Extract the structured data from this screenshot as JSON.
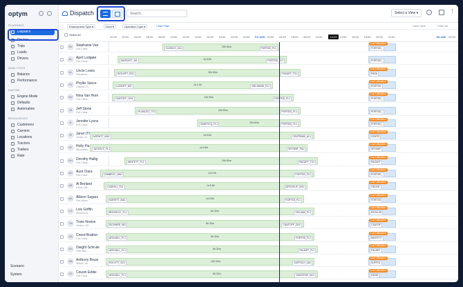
{
  "app": {
    "logo": "optym",
    "title": "Dispatch"
  },
  "sidebar": {
    "sections": [
      {
        "label": "PLANNING",
        "items": [
          "Dispatch",
          "Review",
          "Trips",
          "Loads",
          "Drivers"
        ]
      },
      {
        "label": "ANALYTICS",
        "items": [
          "Balance",
          "Performance"
        ]
      },
      {
        "label": "ENGINE",
        "items": [
          "Engine Mode",
          "Defaults",
          "Automation"
        ]
      },
      {
        "label": "RESOURCES",
        "items": [
          "Customers",
          "Carriers",
          "Locations",
          "Tractors",
          "Trailers",
          "Rate"
        ]
      }
    ],
    "footer": [
      "Scenario",
      "System"
    ]
  },
  "header": {
    "search_placeholder": "Search...",
    "select_view": "Select a View"
  },
  "filters": {
    "items": [
      "Employment Type",
      "Fleet",
      "Operation Type"
    ],
    "add": "+ Add Filter",
    "save": "Save View",
    "clear": "Clear All"
  },
  "timeline": {
    "ticks": [
      "22:00",
      "02:00",
      "04:00",
      "06:00",
      "08:00",
      "10:00",
      "12:00",
      "14:00",
      "16:00",
      "18:00",
      "20:00",
      "22:00",
      "Fri 4/25",
      "02:00",
      "04:00",
      "06:00",
      "08:00",
      "10:00",
      "12:00",
      "14:00",
      "16:00",
      "18:00",
      "20:00",
      "22:00",
      "",
      "",
      "",
      "Sa 4/26",
      "02:00",
      "04:00"
    ],
    "now": "14:23",
    "select_all": "Select All"
  },
  "drivers": [
    {
      "initials": "SV",
      "name": "Stephanie Van",
      "loc": "Fort Chest...",
      "a": "GLENCO_VA1",
      "b": "PORTDD_FL1",
      "d": "20h 50m",
      "c": "PORTDD_"
    },
    {
      "initials": "AL",
      "name": "April Lodgate",
      "loc": "Fort Chest...",
      "a": "MUSCATT_IA1",
      "b": "PORTDD_FL1",
      "d": "1d 5.8h",
      "c": "PORTDD_"
    },
    {
      "initials": "UL",
      "name": "Uncle Lewis",
      "loc": "Pasadena,...",
      "a": "SIOUXFT_SD1",
      "b": "PASAFF_TX1",
      "d": "20h 50m",
      "c": "PASA"
    },
    {
      "initials": "PV",
      "name": "Phyllis Vance",
      "loc": "Orlando, FL",
      "a": "LUDINFF_MI1",
      "b": "ORLANNW_FL1",
      "d": "1d 1.0h",
      "c": "PORTHS"
    },
    {
      "initials": "NV",
      "name": "Nina Van Hom",
      "loc": "Fort Chest...",
      "a": "CANTOFF_OH1",
      "b": "PORTDD_FL1",
      "d": "13h 30m",
      "c": "PORTDD_"
    },
    {
      "initials": "JS",
      "name": "Jeff Stone",
      "loc": "Fort Chest...",
      "a": "PLANOCC_TX1",
      "b": "PORTDD_FL1",
      "d": "20h 50m",
      "c": "PORTDD_"
    },
    {
      "initials": "JL",
      "name": "Jennifer Lyons",
      "loc": "Fort Chest...",
      "a": "SANFOCQ_FL1",
      "b": "PORTDD_FL1",
      "d": "20h 50m",
      "c": "PORTDD_"
    },
    {
      "initials": "JP",
      "name": "Janet (The Go",
      "loc": "Centra, AL",
      "a": "NORHTT_MA1",
      "b": "CENTRWW_AL1",
      "d": "1d 5.8h",
      "c": "CENTR"
    },
    {
      "initials": "HF",
      "name": "Holly Flax",
      "loc": "Wyomissin...",
      "a": "JACKSCC_FL1",
      "b": "WYOMIF_PA1",
      "d": "1d 5.8h",
      "c": "WYOMIF"
    },
    {
      "initials": "DH",
      "name": "Dorothy Hallig",
      "loc": "Fort Chest...",
      "a": "WINTETT_FL1",
      "b": "PAGAFF_TX1",
      "d": "20h 50m",
      "c": "PAGAFF"
    },
    {
      "initials": "AC",
      "name": "Aunt Clara",
      "loc": "Fort Chest...",
      "a": "CAMBRCC_MN1",
      "b": "PORTDD_FL1",
      "d": "1d 6.9h",
      "c": "PORTDD_"
    },
    {
      "initials": "AB",
      "name": "Al Borland",
      "loc": "Grove City...",
      "a": "CASEELL_FL1",
      "b": "GROVEUF_OH1",
      "d": "1d 5.8h",
      "c": "GROVE"
    },
    {
      "initials": "AS",
      "name": "Allison Sugars",
      "loc": "Fort Myers...",
      "a": "NORHTT_MA1",
      "b": "FORTSS_FL1",
      "d": "1d 5.8h",
      "c": "FORTSS"
    },
    {
      "initials": "LG",
      "name": "Lois Griffin",
      "loc": "Richland H...",
      "a": "BROOKCC_FL1",
      "b": "ORLANN_FL1",
      "d": "8h 33m",
      "c": "RICHLSS"
    },
    {
      "initials": "TN",
      "name": "Trixie Norton",
      "loc": "Canton, OH",
      "a": "RICHMEE_WI1",
      "b": "CANTOFF_OH1",
      "d": "8h 33m",
      "c": "CANTOF"
    },
    {
      "initials": "CB",
      "name": "Creed Bratton",
      "loc": "Fort Chest...",
      "a": "ARCADLL_FL1",
      "b": "FORTSS_FL1",
      "d": "8h 33m",
      "c": "WINTETT"
    },
    {
      "initials": "DS",
      "name": "Dwight Schrute",
      "loc": "Palm Bay,...",
      "a": "ARCADLL_FL1",
      "b": "PALMFF_FL1",
      "d": "8h 33m",
      "c": "PALMFF"
    },
    {
      "initials": "AB",
      "name": "Anthony Bouvi",
      "loc": "Suffolk, VA",
      "a": "ROCKTT_SC1",
      "b": "SUFFOLH_VA1",
      "d": "13h 30m",
      "c": "SUFFOL"
    },
    {
      "initials": "CE",
      "name": "Cousin Eddie",
      "loc": "Fort Chest...",
      "a": "ARCADLL_FL1",
      "b": "DAVISTOR_NC1",
      "d": "8h 33m",
      "c": "DAVIS"
    }
  ],
  "badge_label": "Low Utilization",
  "colors": {
    "accent": "#1a6ae0",
    "bar": "#dcefd8",
    "badge": "#f28c28"
  }
}
